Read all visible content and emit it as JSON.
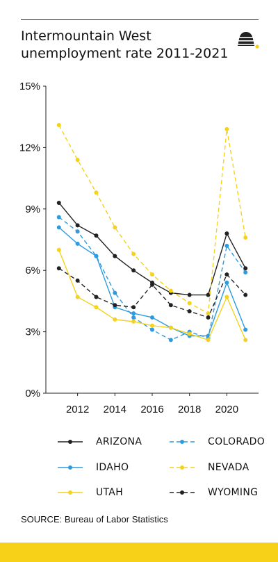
{
  "title": "Intermountain West unemployment rate 2011-2021",
  "source": "SOURCE: Bureau of Labor Statistics",
  "colors": {
    "accent": "#f7d117",
    "black": "#222222",
    "blue": "#2c9be0",
    "yellow": "#f5d21c"
  },
  "chart_data": {
    "type": "line",
    "title": "Intermountain West unemployment rate 2011-2021",
    "xlabel": "",
    "ylabel": "",
    "x": [
      2011,
      2012,
      2013,
      2014,
      2015,
      2016,
      2017,
      2018,
      2019,
      2020,
      2021
    ],
    "xlim": [
      2010.3,
      2021.7
    ],
    "ylim": [
      0,
      15
    ],
    "x_ticks": [
      2012,
      2014,
      2016,
      2018,
      2020
    ],
    "y_ticks": [
      0,
      3,
      6,
      9,
      12,
      15
    ],
    "y_tick_labels": [
      "0%",
      "3%",
      "6%",
      "9%",
      "12%",
      "15%"
    ],
    "grid": false,
    "legend_position": "bottom",
    "series": [
      {
        "name": "ARIZONA",
        "color": "#222222",
        "dashed": false,
        "values": [
          9.3,
          8.2,
          7.7,
          6.7,
          6.0,
          5.4,
          4.9,
          4.8,
          4.8,
          7.8,
          6.1
        ]
      },
      {
        "name": "COLORADO",
        "color": "#2c9be0",
        "dashed": true,
        "values": [
          8.6,
          7.9,
          6.7,
          4.9,
          3.7,
          3.1,
          2.6,
          3.0,
          2.7,
          7.2,
          5.9
        ]
      },
      {
        "name": "IDAHO",
        "color": "#2c9be0",
        "dashed": false,
        "values": [
          8.1,
          7.3,
          6.7,
          4.2,
          3.9,
          3.7,
          3.2,
          2.8,
          2.8,
          5.4,
          3.1
        ]
      },
      {
        "name": "NEVADA",
        "color": "#f5d21c",
        "dashed": true,
        "values": [
          13.1,
          11.4,
          9.8,
          8.1,
          6.8,
          5.8,
          5.0,
          4.4,
          3.9,
          12.9,
          7.6
        ]
      },
      {
        "name": "UTAH",
        "color": "#f5d21c",
        "dashed": false,
        "values": [
          7.0,
          4.7,
          4.2,
          3.6,
          3.5,
          3.3,
          3.2,
          2.9,
          2.6,
          4.7,
          2.6
        ]
      },
      {
        "name": "WYOMING",
        "color": "#222222",
        "dashed": true,
        "values": [
          6.1,
          5.5,
          4.7,
          4.3,
          4.2,
          5.3,
          4.3,
          4.0,
          3.7,
          5.8,
          4.8
        ]
      }
    ]
  },
  "legend_order": [
    0,
    1,
    2,
    3,
    4,
    5
  ]
}
